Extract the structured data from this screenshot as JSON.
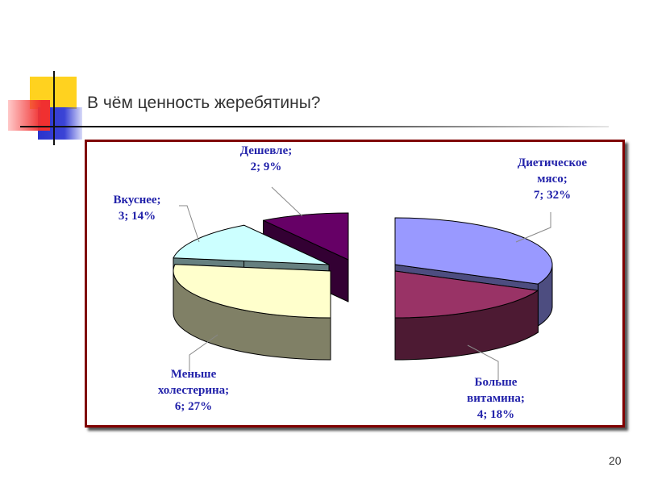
{
  "slide": {
    "title": "В чём ценность жеребятины?",
    "page_number": "20"
  },
  "chart_data": {
    "type": "pie",
    "style": "3d-exploded",
    "title": "",
    "slices": [
      {
        "name": "Диетическое мясо",
        "value": 7,
        "percent": 32,
        "label": "Диетическое\nмясо;\n7; 32%",
        "color": "#9999ff",
        "side_color": "#4d4d80"
      },
      {
        "name": "Больше витамина",
        "value": 4,
        "percent": 18,
        "label": "Больше\nвитамина;\n4; 18%",
        "color": "#993366",
        "side_color": "#4d1a33"
      },
      {
        "name": "Меньше холестерина",
        "value": 6,
        "percent": 27,
        "label": "Меньше\nхолестерина;\n6; 27%",
        "color": "#ffffcc",
        "side_color": "#808066"
      },
      {
        "name": "Вкуснее",
        "value": 3,
        "percent": 14,
        "label": "Вкуснее;\n3; 14%",
        "color": "#ccffff",
        "side_color": "#668080"
      },
      {
        "name": "Дешевле",
        "value": 2,
        "percent": 9,
        "label": "Дешевле;\n2; 9%",
        "color": "#660066",
        "side_color": "#330033"
      }
    ]
  }
}
